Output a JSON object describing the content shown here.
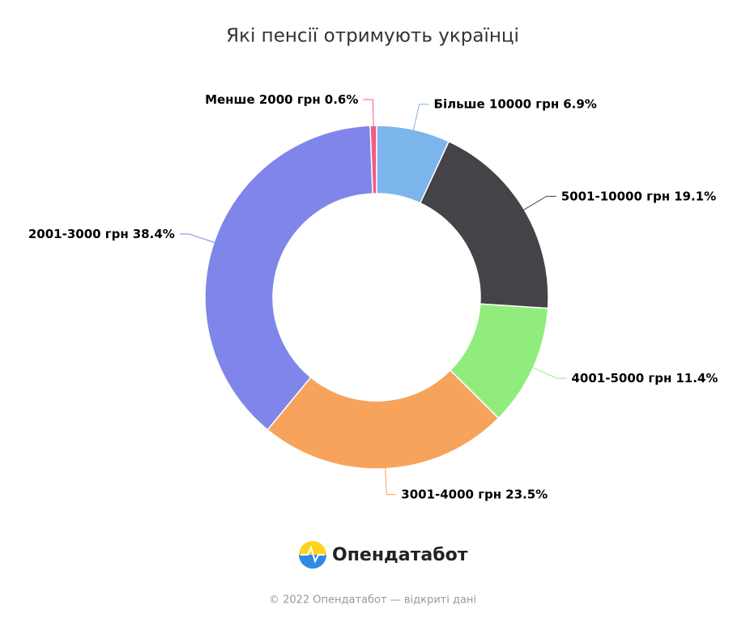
{
  "chart_data": {
    "type": "pie",
    "donut": true,
    "title": "Які пенсії отримують українці",
    "categories": [
      "Більше 10000 грн",
      "5001-10000 грн",
      "4001-5000 грн",
      "3001-4000 грн",
      "2001-3000 грн",
      "Менше 2000 грн"
    ],
    "values": [
      6.9,
      19.1,
      11.4,
      23.5,
      38.4,
      0.6
    ],
    "value_labels": [
      "6.9%",
      "19.1%",
      "11.4%",
      "23.5%",
      "38.4%",
      "0.6%"
    ],
    "colors": [
      "#7cb5ec",
      "#434348",
      "#90ed7d",
      "#f7a35c",
      "#8085e9",
      "#f15c80"
    ]
  },
  "logo": "Опендатабот",
  "footer": "© 2022 Опендатабот — відкриті дані"
}
